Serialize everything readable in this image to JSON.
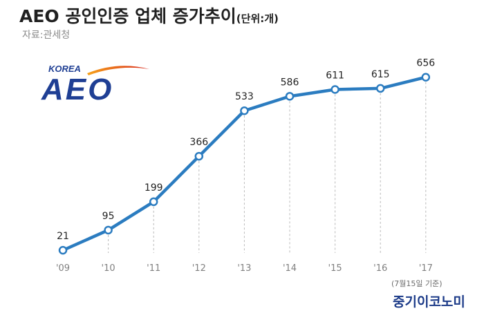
{
  "header": {
    "title": "AEO 공인인증 업체 증가추이",
    "unit": "(단위:개)",
    "source": "자료:관세청"
  },
  "logo": {
    "small_text": "KOREA",
    "big_text": "AEO",
    "colors": {
      "blue": "#1f3f94",
      "swoosh_start": "#f6a21a",
      "swoosh_end": "#d8281e"
    }
  },
  "chart_data": {
    "type": "line",
    "categories": [
      "'09",
      "'10",
      "'11",
      "'12",
      "'13",
      "'14",
      "'15",
      "'16",
      "'17"
    ],
    "values": [
      21,
      95,
      199,
      366,
      533,
      586,
      611,
      615,
      656
    ],
    "title": "AEO 공인인증 업체 증가추이",
    "unit": "(단위:개)",
    "grid": "vertical-dashed",
    "line_color": "#2b7cc0"
  },
  "footer": {
    "note": "(7월15일 기준)",
    "brand": "중기이코노미"
  }
}
